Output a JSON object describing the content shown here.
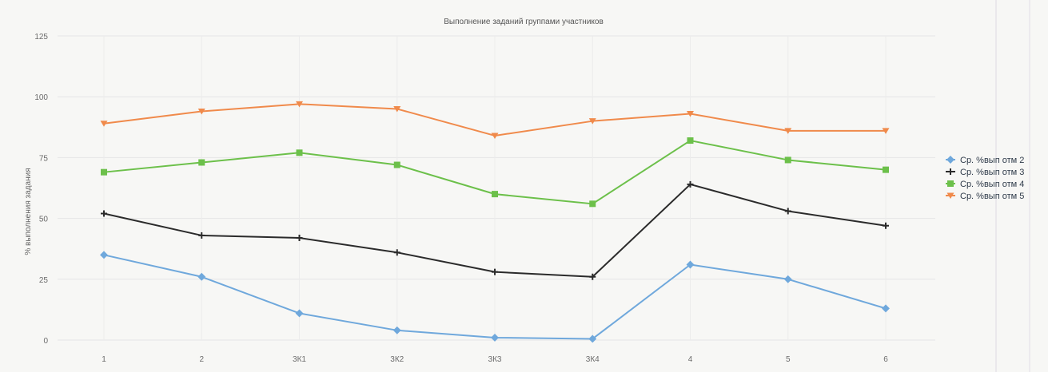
{
  "chart_data": {
    "type": "line",
    "title": "Выполнение заданий группами участников",
    "ylabel": "% выполнения задания",
    "xlabel": "",
    "categories": [
      "1",
      "2",
      "3К1",
      "3К2",
      "3К3",
      "3К4",
      "4",
      "5",
      "6"
    ],
    "ylim": [
      0,
      125
    ],
    "yticks": [
      0,
      25,
      50,
      75,
      100,
      125
    ],
    "grid": true,
    "legend_position": "right",
    "series": [
      {
        "name": "Ср. %вып отм 2",
        "color": "#6fa8dc",
        "marker": "diamond",
        "values": [
          35,
          26,
          11,
          4,
          1,
          0.5,
          31,
          25,
          13
        ]
      },
      {
        "name": "Ср. %вып отм 3",
        "color": "#2b2b2b",
        "marker": "cross",
        "values": [
          52,
          43,
          42,
          36,
          28,
          26,
          64,
          53,
          47
        ]
      },
      {
        "name": "Ср. %вып отм 4",
        "color": "#6cc04a",
        "marker": "square",
        "values": [
          69,
          73,
          77,
          72,
          60,
          56,
          82,
          74,
          70
        ]
      },
      {
        "name": "Ср. %вып отм 5",
        "color": "#f08a4b",
        "marker": "triangle",
        "values": [
          89,
          94,
          97,
          95,
          84,
          90,
          93,
          86,
          86
        ]
      }
    ]
  }
}
